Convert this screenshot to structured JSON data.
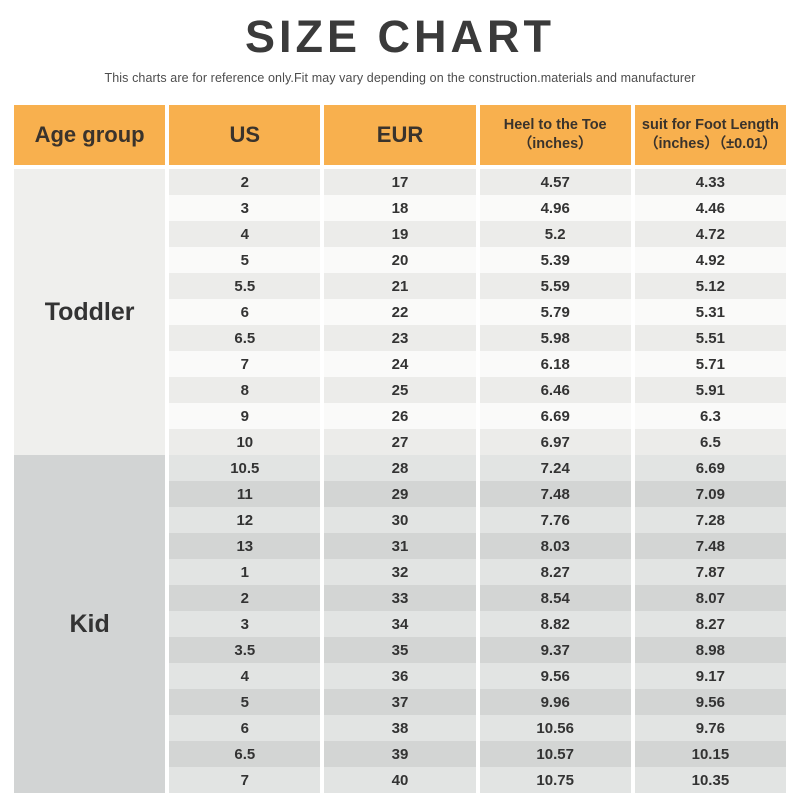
{
  "page": {
    "title": "SIZE CHART",
    "subtitle": "This charts are for reference only.Fit may vary depending on the construction.materials and manufacturer"
  },
  "colors": {
    "header_bg": "#F8B04E",
    "toddler_age_bg": "#EFEFED",
    "toddler_row_gray": "#ECECEA",
    "toddler_row_white": "#FAFAF9",
    "kid_age_bg": "#D2D4D4",
    "kid_row_light": "#E2E4E3",
    "kid_row_dark": "#D3D5D4",
    "text": "#333333"
  },
  "chart_data": {
    "type": "table",
    "title": "SIZE CHART",
    "columns": [
      "Age group",
      "US",
      "EUR",
      "Heel to the Toe（inches）",
      "suit for Foot Length（inches）（±0.01）"
    ],
    "header": {
      "age_group": "Age group",
      "us": "US",
      "eur": "EUR",
      "heel_line1": "Heel to the Toe",
      "heel_line2": "（inches）",
      "foot_line1": "suit for Foot Length",
      "foot_line2": "（inches）（±0.01）"
    },
    "sections": [
      {
        "age_group": "Toddler",
        "rows": [
          [
            "2",
            "17",
            "4.57",
            "4.33"
          ],
          [
            "3",
            "18",
            "4.96",
            "4.46"
          ],
          [
            "4",
            "19",
            "5.2",
            "4.72"
          ],
          [
            "5",
            "20",
            "5.39",
            "4.92"
          ],
          [
            "5.5",
            "21",
            "5.59",
            "5.12"
          ],
          [
            "6",
            "22",
            "5.79",
            "5.31"
          ],
          [
            "6.5",
            "23",
            "5.98",
            "5.51"
          ],
          [
            "7",
            "24",
            "6.18",
            "5.71"
          ],
          [
            "8",
            "25",
            "6.46",
            "5.91"
          ],
          [
            "9",
            "26",
            "6.69",
            "6.3"
          ],
          [
            "10",
            "27",
            "6.97",
            "6.5"
          ]
        ]
      },
      {
        "age_group": "Kid",
        "rows": [
          [
            "10.5",
            "28",
            "7.24",
            "6.69"
          ],
          [
            "11",
            "29",
            "7.48",
            "7.09"
          ],
          [
            "12",
            "30",
            "7.76",
            "7.28"
          ],
          [
            "13",
            "31",
            "8.03",
            "7.48"
          ],
          [
            "1",
            "32",
            "8.27",
            "7.87"
          ],
          [
            "2",
            "33",
            "8.54",
            "8.07"
          ],
          [
            "3",
            "34",
            "8.82",
            "8.27"
          ],
          [
            "3.5",
            "35",
            "9.37",
            "8.98"
          ],
          [
            "4",
            "36",
            "9.56",
            "9.17"
          ],
          [
            "5",
            "37",
            "9.96",
            "9.56"
          ],
          [
            "6",
            "38",
            "10.56",
            "9.76"
          ],
          [
            "6.5",
            "39",
            "10.57",
            "10.15"
          ],
          [
            "7",
            "40",
            "10.75",
            "10.35"
          ]
        ]
      }
    ]
  }
}
